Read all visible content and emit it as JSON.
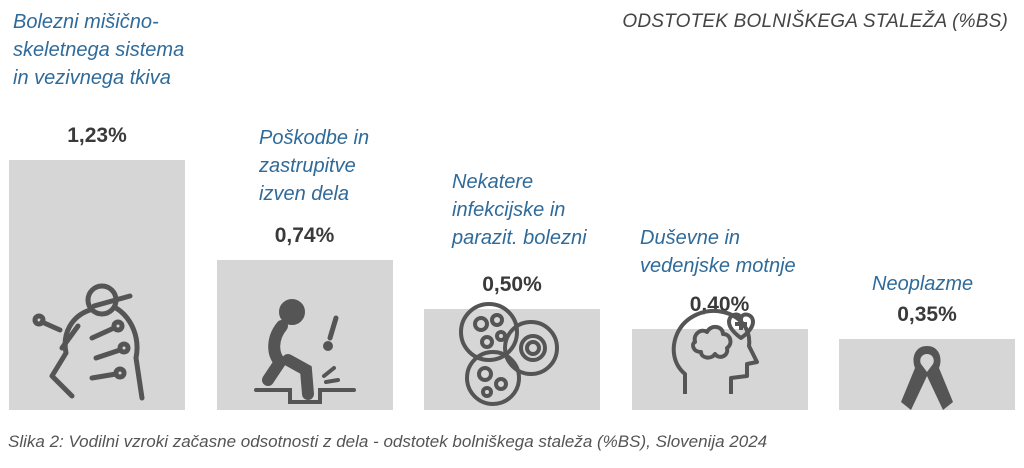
{
  "chart_data": {
    "type": "bar",
    "title": "ODSTOTEK BOLNIŠKEGA STALEŽA (%BS)",
    "categories": [
      "Bolezni mišično-\nskeletnega sistema\nin vezivnega tkiva",
      "Poškodbe in\nzastrupitve\nizven dela",
      "Nekatere\ninfekcijske in\nparazit. bolezni",
      "Duševne in\nvedenjske motnje",
      "Neoplazme"
    ],
    "values": [
      1.23,
      0.74,
      0.5,
      0.4,
      0.35
    ],
    "value_labels": [
      "1,23%",
      "0,74%",
      "0,50%",
      "0,40%",
      "0,35%"
    ],
    "icons": [
      "musculoskeletal-icon",
      "injury-icon",
      "infection-cells-icon",
      "mental-health-icon",
      "cancer-ribbon-icon"
    ],
    "bar_color": "#d6d6d6",
    "label_color": "#2f6b9a",
    "value_color": "#3a3a3a",
    "xlabel": "",
    "ylabel": "",
    "grid": false
  },
  "caption": "Slika 2: Vodilni vzroki začasne odsotnosti z dela - odstotek bolniškega staleža (%BS), Slovenija 2024"
}
